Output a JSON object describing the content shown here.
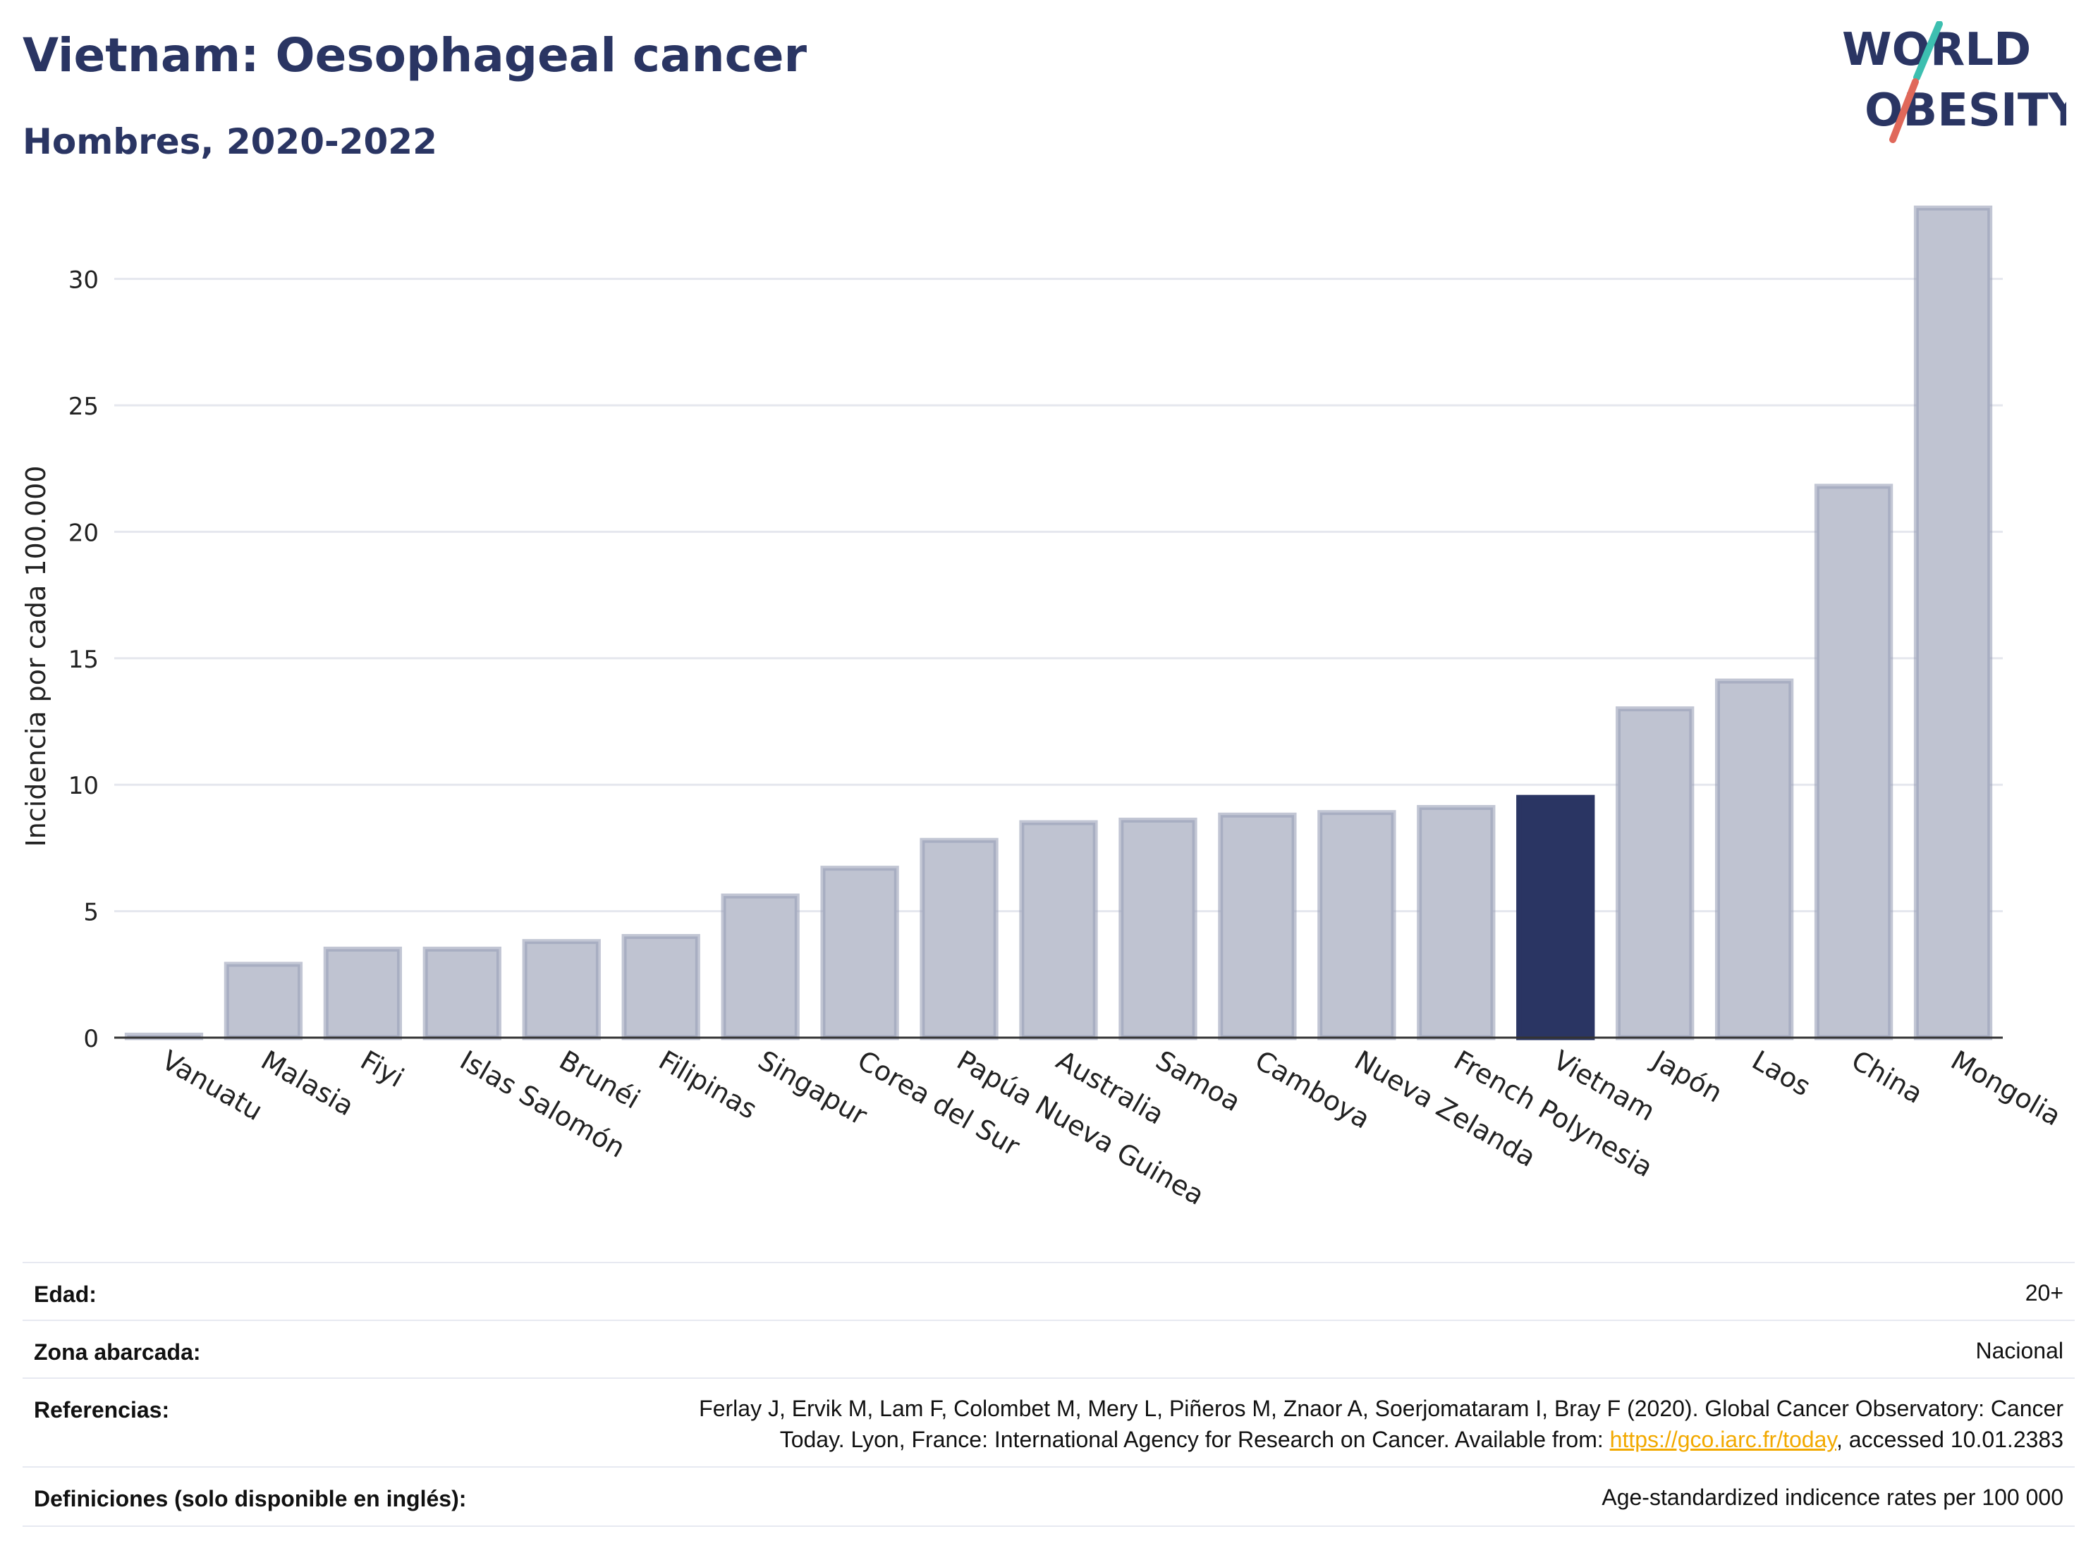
{
  "header": {
    "title": "Vietnam: Oesophageal cancer",
    "subtitle": "Hombres, 2020-2022"
  },
  "logo": {
    "line1": "WORLD",
    "line2": "OBESITY",
    "colors": {
      "text": "#2a3563",
      "slash_top": "#3dbfb0",
      "slash_bottom": "#e0685a"
    }
  },
  "colors": {
    "bar_default": "#bfc3d1",
    "bar_border": "#9aa0b8",
    "bar_highlight": "#2a3563",
    "grid": "#e5e7ee",
    "axis": "#333333"
  },
  "chart_data": {
    "type": "bar",
    "title": "",
    "xlabel": "",
    "ylabel": "Incidencia por cada 100.000",
    "ylim": [
      0,
      33.5
    ],
    "yticks": [
      0,
      5,
      10,
      15,
      20,
      25,
      30
    ],
    "grid": true,
    "highlight": "Vietnam",
    "categories": [
      "Vanuatu",
      "Malasia",
      "Fiyi",
      "Islas Salomón",
      "Brunéi",
      "Filipinas",
      "Singapur",
      "Corea del Sur",
      "Papúa Nueva Guinea",
      "Australia",
      "Samoa",
      "Camboya",
      "Nueva Zelanda",
      "French Polynesia",
      "Vietnam",
      "Japón",
      "Laos",
      "China",
      "Mongolia"
    ],
    "values": [
      0.1,
      2.9,
      3.5,
      3.5,
      3.8,
      4.0,
      5.6,
      6.7,
      7.8,
      8.5,
      8.6,
      8.8,
      8.9,
      9.1,
      9.5,
      13.0,
      14.1,
      21.8,
      32.8
    ]
  },
  "meta": {
    "rows": [
      {
        "label": "Edad:",
        "value": "20+"
      },
      {
        "label": "Zona abarcada:",
        "value": "Nacional"
      },
      {
        "label": "Referencias:",
        "value_line1": "Ferlay J, Ervik M, Lam F, Colombet M, Mery L, Piñeros M, Znaor A, Soerjomataram I, Bray F (2020). Global Cancer Observatory: Cancer",
        "value_line2_pre": "Today. Lyon, France: International Agency for Research on Cancer. Available from: ",
        "link": "https://gco.iarc.fr/today",
        "value_line2_post": ", accessed 10.01.2383"
      },
      {
        "label": "Definiciones (solo disponible en inglés):",
        "value": "Age-standardized indicence rates per 100 000"
      }
    ]
  }
}
